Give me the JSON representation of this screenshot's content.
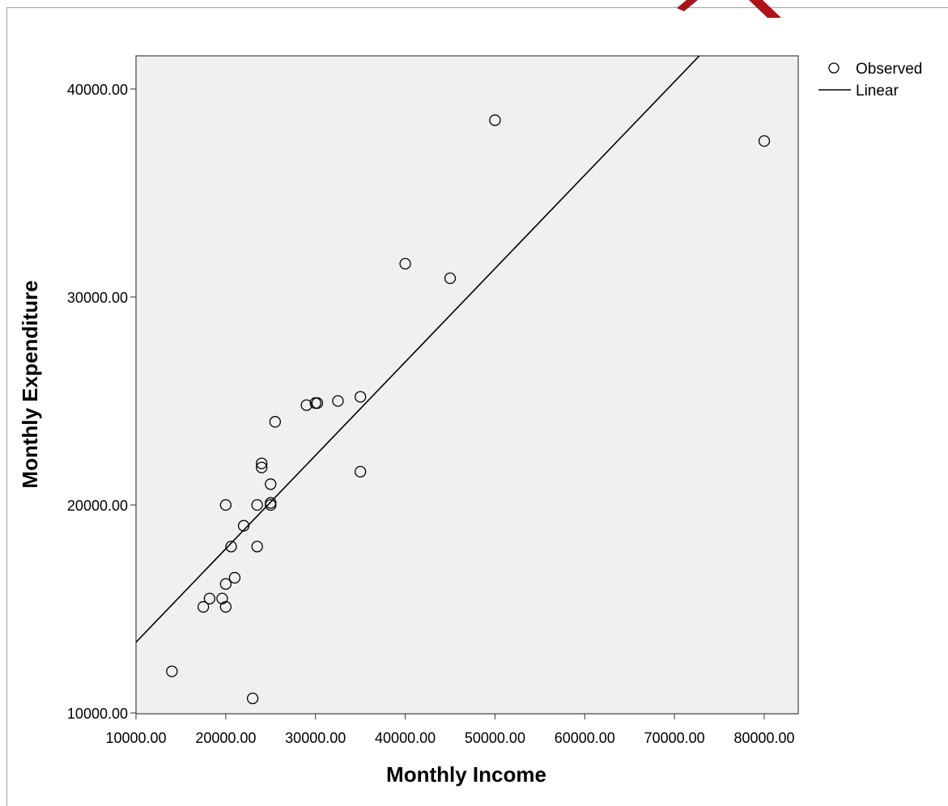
{
  "chart_data": {
    "type": "scatter",
    "xlabel": "Monthly Income",
    "ylabel": "Monthly Expenditure",
    "xlim": [
      10000,
      80000
    ],
    "ylim": [
      10000,
      40000
    ],
    "x_ticks": [
      10000,
      20000,
      30000,
      40000,
      50000,
      60000,
      70000,
      80000
    ],
    "y_ticks": [
      10000,
      20000,
      30000,
      40000
    ],
    "x_tick_labels": [
      "10000.00",
      "20000.00",
      "30000.00",
      "40000.00",
      "50000.00",
      "60000.00",
      "70000.00",
      "80000.00"
    ],
    "y_tick_labels": [
      "10000.00",
      "20000.00",
      "30000.00",
      "40000.00"
    ],
    "grid": false,
    "legend": {
      "position": "top-right",
      "entries": [
        "Observed",
        "Linear"
      ]
    },
    "series": [
      {
        "name": "Observed",
        "kind": "points",
        "points": [
          [
            14000,
            12000
          ],
          [
            17500,
            15100
          ],
          [
            18200,
            15500
          ],
          [
            19600,
            15500
          ],
          [
            20000,
            16200
          ],
          [
            20000,
            15100
          ],
          [
            21000,
            16500
          ],
          [
            20600,
            18000
          ],
          [
            20000,
            20000
          ],
          [
            22000,
            19000
          ],
          [
            23500,
            18000
          ],
          [
            23500,
            20000
          ],
          [
            23000,
            10700
          ],
          [
            24000,
            22000
          ],
          [
            24000,
            21800
          ],
          [
            25000,
            21000
          ],
          [
            25000,
            20100
          ],
          [
            25000,
            20000
          ],
          [
            25500,
            24000
          ],
          [
            29000,
            24800
          ],
          [
            30000,
            24900
          ],
          [
            30200,
            24900
          ],
          [
            32500,
            25000
          ],
          [
            35000,
            25200
          ],
          [
            35000,
            21600
          ],
          [
            40000,
            31600
          ],
          [
            45000,
            30900
          ],
          [
            50000,
            38500
          ],
          [
            80000,
            37500
          ]
        ]
      },
      {
        "name": "Linear",
        "kind": "line",
        "points": [
          [
            10000,
            13400
          ],
          [
            73000,
            41700
          ]
        ]
      }
    ]
  },
  "colors": {
    "plot_background": "#f0f0f0",
    "marks": "#000000"
  }
}
